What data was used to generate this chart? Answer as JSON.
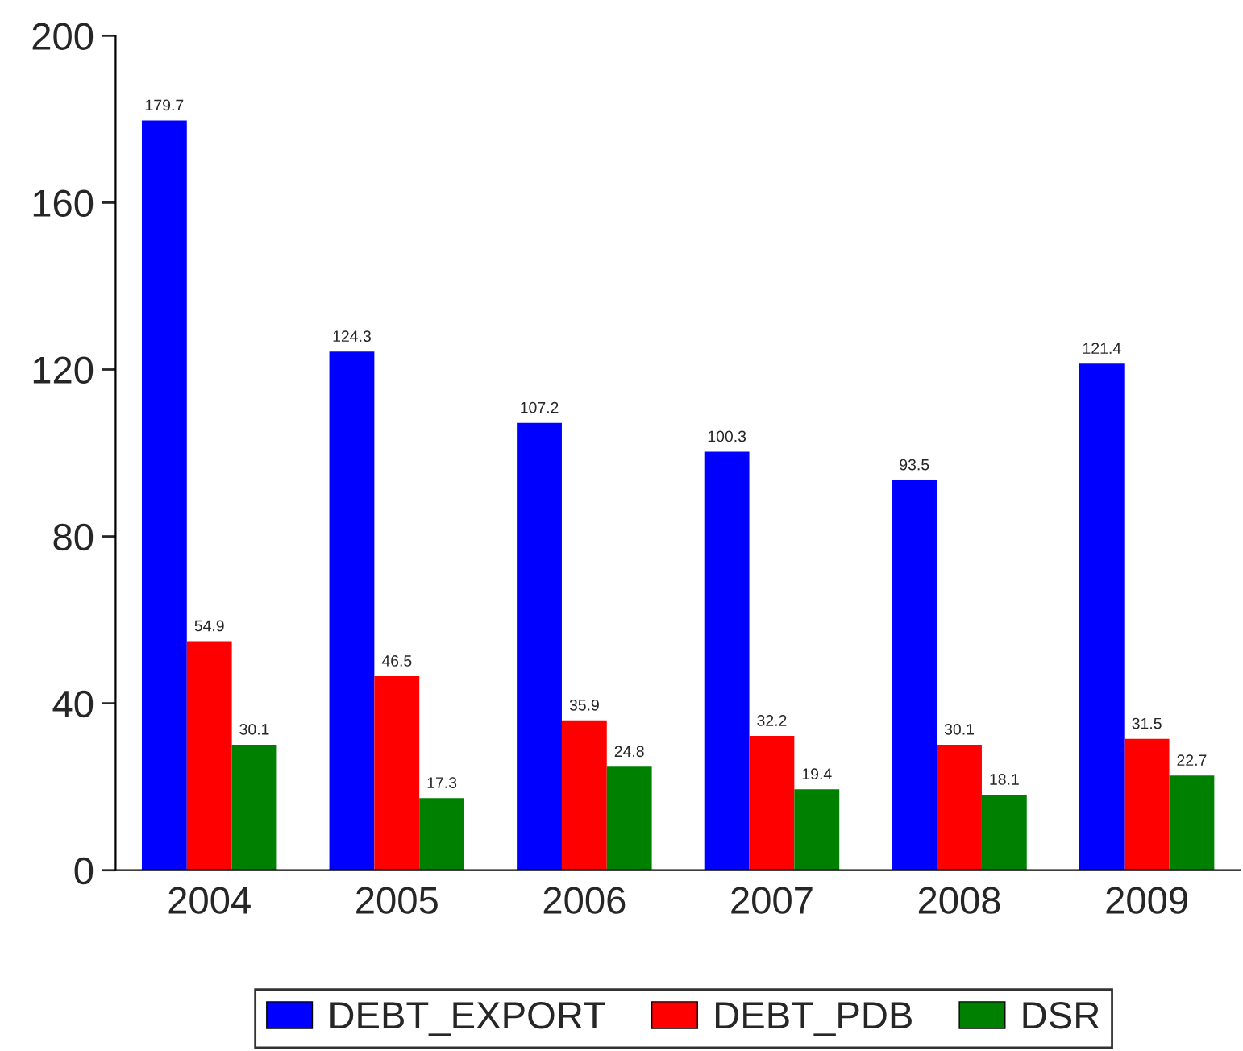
{
  "chart_data": {
    "type": "bar",
    "categories": [
      "2004",
      "2005",
      "2006",
      "2007",
      "2008",
      "2009"
    ],
    "series": [
      {
        "name": "DEBT_EXPORT",
        "color": "#0000ff",
        "values": [
          179.7,
          124.3,
          107.2,
          100.3,
          93.5,
          121.4
        ]
      },
      {
        "name": "DEBT_PDB",
        "color": "#ff0000",
        "values": [
          54.9,
          46.5,
          35.9,
          32.2,
          30.1,
          31.5
        ]
      },
      {
        "name": "DSR",
        "color": "#008000",
        "values": [
          30.1,
          17.3,
          24.8,
          19.4,
          18.1,
          22.7
        ]
      }
    ],
    "ylim": [
      0,
      200
    ],
    "yticks": [
      0,
      40,
      80,
      120,
      160,
      200
    ],
    "data_labels": true,
    "grid": false,
    "legend": "bottom"
  }
}
